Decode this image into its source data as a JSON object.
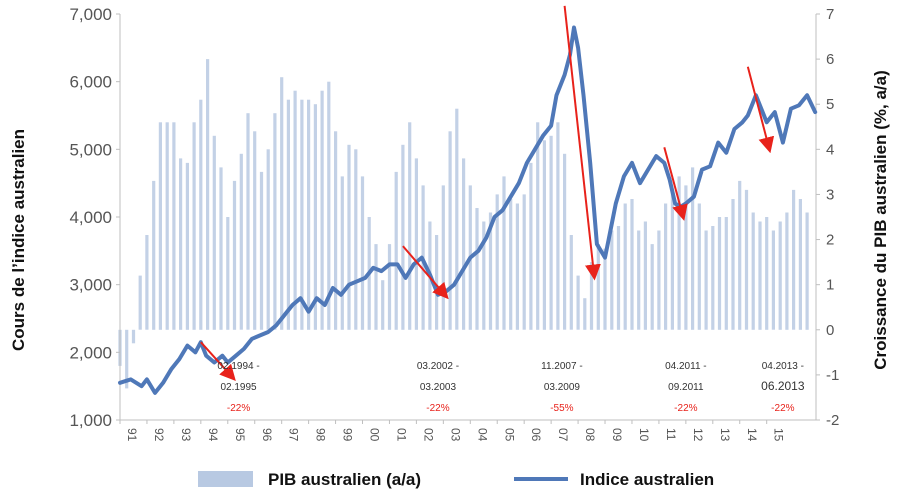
{
  "chart_data": {
    "type": "bar+line",
    "title": "",
    "y_left": {
      "label": "Cours de l’indice australien",
      "lim": [
        1000,
        7000
      ],
      "ticks": [
        "1,000",
        "2,000",
        "3,000",
        "4,000",
        "5,000",
        "6,000",
        "7,000"
      ],
      "tick_values": [
        1000,
        2000,
        3000,
        4000,
        5000,
        6000,
        7000
      ]
    },
    "y_right": {
      "label": "Croissance du PIB australien (%, a/a)",
      "lim": [
        -2,
        7
      ],
      "ticks": [
        "-2",
        "-1",
        "0",
        "1",
        "2",
        "3",
        "4",
        "5",
        "6",
        "7"
      ],
      "tick_values": [
        -2,
        -1,
        0,
        1,
        2,
        3,
        4,
        5,
        6,
        7
      ]
    },
    "x": {
      "lim": [
        1991.0,
        2016.83
      ],
      "tick_labels": [
        "91",
        "92",
        "93",
        "94",
        "95",
        "96",
        "97",
        "98",
        "99",
        "00",
        "01",
        "02",
        "03",
        "04",
        "05",
        "06",
        "07",
        "08",
        "09",
        "10",
        "11",
        "12",
        "13",
        "14",
        "15"
      ],
      "tick_years": [
        1991,
        1992,
        1993,
        1994,
        1995,
        1996,
        1997,
        1998,
        1999,
        2000,
        2001,
        2002,
        2003,
        2004,
        2005,
        2006,
        2007,
        2008,
        2009,
        2010,
        2011,
        2012,
        2013,
        2014,
        2015
      ]
    },
    "series": [
      {
        "name": "PIB australien (a/a)",
        "kind": "bar",
        "color": "#b8c9e2",
        "x": [
          1991.0,
          1991.25,
          1991.5,
          1991.75,
          1992.0,
          1992.25,
          1992.5,
          1992.75,
          1993.0,
          1993.25,
          1993.5,
          1993.75,
          1994.0,
          1994.25,
          1994.5,
          1994.75,
          1995.0,
          1995.25,
          1995.5,
          1995.75,
          1996.0,
          1996.25,
          1996.5,
          1996.75,
          1997.0,
          1997.25,
          1997.5,
          1997.75,
          1998.0,
          1998.25,
          1998.5,
          1998.75,
          1999.0,
          1999.25,
          1999.5,
          1999.75,
          2000.0,
          2000.25,
          2000.5,
          2000.75,
          2001.0,
          2001.25,
          2001.5,
          2001.75,
          2002.0,
          2002.25,
          2002.5,
          2002.75,
          2003.0,
          2003.25,
          2003.5,
          2003.75,
          2004.0,
          2004.25,
          2004.5,
          2004.75,
          2005.0,
          2005.25,
          2005.5,
          2005.75,
          2006.0,
          2006.25,
          2006.5,
          2006.75,
          2007.0,
          2007.25,
          2007.5,
          2007.75,
          2008.0,
          2008.25,
          2008.5,
          2008.75,
          2009.0,
          2009.25,
          2009.5,
          2009.75,
          2010.0,
          2010.25,
          2010.5,
          2010.75,
          2011.0,
          2011.25,
          2011.5,
          2011.75,
          2012.0,
          2012.25,
          2012.5,
          2012.75,
          2013.0,
          2013.25,
          2013.5,
          2013.75,
          2014.0,
          2014.25,
          2014.5,
          2014.75,
          2015.0,
          2015.25,
          2015.5,
          2015.75,
          2016.0,
          2016.25,
          2016.5
        ],
        "values": [
          -0.8,
          -1.3,
          -0.3,
          1.2,
          2.1,
          3.3,
          4.6,
          4.6,
          4.6,
          3.8,
          3.7,
          4.6,
          5.1,
          6.0,
          4.3,
          3.6,
          2.5,
          3.3,
          3.9,
          4.8,
          4.4,
          3.5,
          4.0,
          4.8,
          5.6,
          5.1,
          5.3,
          5.1,
          5.1,
          5.0,
          5.3,
          5.5,
          4.4,
          3.4,
          4.1,
          4.0,
          3.4,
          2.5,
          1.9,
          1.1,
          1.9,
          3.5,
          4.1,
          4.6,
          3.8,
          3.2,
          2.4,
          2.1,
          3.2,
          4.4,
          4.9,
          3.8,
          3.2,
          2.7,
          2.4,
          2.6,
          3.0,
          3.4,
          2.9,
          2.8,
          3.0,
          3.7,
          4.6,
          4.2,
          4.3,
          4.6,
          3.9,
          2.1,
          1.2,
          0.7,
          1.5,
          1.9,
          1.8,
          2.2,
          2.3,
          2.8,
          2.9,
          2.2,
          2.4,
          1.9,
          2.2,
          2.8,
          3.1,
          3.4,
          3.2,
          3.6,
          2.8,
          2.2,
          2.3,
          2.5,
          2.5,
          2.9,
          3.3,
          3.1,
          2.6,
          2.4,
          2.5,
          2.2,
          2.4,
          2.6,
          3.1,
          2.9,
          2.6
        ]
      },
      {
        "name": "Indice australien",
        "kind": "line",
        "color": "#4f78b8",
        "x": [
          1991.0,
          1991.4,
          1991.8,
          1992.0,
          1992.3,
          1992.6,
          1992.9,
          1993.2,
          1993.5,
          1993.8,
          1994.0,
          1994.2,
          1994.5,
          1994.8,
          1995.0,
          1995.3,
          1995.6,
          1995.9,
          1996.2,
          1996.5,
          1996.8,
          1997.1,
          1997.4,
          1997.7,
          1998.0,
          1998.3,
          1998.6,
          1998.9,
          1999.2,
          1999.5,
          1999.8,
          2000.1,
          2000.4,
          2000.7,
          2001.0,
          2001.3,
          2001.6,
          2001.9,
          2002.2,
          2002.5,
          2002.8,
          2003.1,
          2003.4,
          2003.7,
          2004.0,
          2004.3,
          2004.6,
          2004.9,
          2005.2,
          2005.5,
          2005.8,
          2006.1,
          2006.4,
          2006.7,
          2007.0,
          2007.2,
          2007.5,
          2007.7,
          2007.85,
          2008.0,
          2008.2,
          2008.45,
          2008.7,
          2009.0,
          2009.15,
          2009.4,
          2009.7,
          2010.0,
          2010.3,
          2010.6,
          2010.9,
          2011.2,
          2011.4,
          2011.6,
          2011.8,
          2012.0,
          2012.3,
          2012.6,
          2012.9,
          2013.2,
          2013.5,
          2013.8,
          2014.1,
          2014.3,
          2014.6,
          2014.8,
          2015.0,
          2015.3,
          2015.6,
          2015.9,
          2016.2,
          2016.5,
          2016.8
        ],
        "values": [
          1550,
          1600,
          1500,
          1600,
          1400,
          1550,
          1750,
          1900,
          2100,
          2000,
          2150,
          1950,
          1850,
          1950,
          1850,
          1950,
          2050,
          2200,
          2250,
          2300,
          2400,
          2550,
          2700,
          2800,
          2600,
          2800,
          2700,
          2950,
          2850,
          3000,
          3050,
          3100,
          3250,
          3200,
          3300,
          3300,
          3100,
          3300,
          3400,
          3150,
          2850,
          2900,
          3000,
          3200,
          3400,
          3500,
          3700,
          4000,
          4100,
          4300,
          4500,
          4800,
          5000,
          5200,
          5350,
          5800,
          6100,
          6400,
          6800,
          6500,
          5800,
          4800,
          3600,
          3400,
          3700,
          4200,
          4600,
          4800,
          4500,
          4700,
          4900,
          4800,
          4550,
          4200,
          4150,
          4200,
          4300,
          4700,
          4750,
          5100,
          4950,
          5300,
          5400,
          5500,
          5800,
          5600,
          5400,
          5550,
          5100,
          5600,
          5650,
          5800,
          5550
        ]
      }
    ],
    "annotations": [
      {
        "period": "02.1994 -",
        "period2": "02.1995",
        "pct": "-22%"
      },
      {
        "period": "03.2002 -",
        "period2": "03.2003",
        "pct": "-22%"
      },
      {
        "period": "11.2007 -",
        "period2": "03.2009",
        "pct": "-55%"
      },
      {
        "period": "04.2011 -",
        "period2": "09.2011",
        "pct": "-22%"
      },
      {
        "period": "04.2013 -",
        "period2": "06.2013",
        "pct": "-22%"
      }
    ],
    "legend": {
      "placement": "bottom",
      "items": [
        "PIB australien (a/a)",
        "Indice australien"
      ]
    }
  }
}
